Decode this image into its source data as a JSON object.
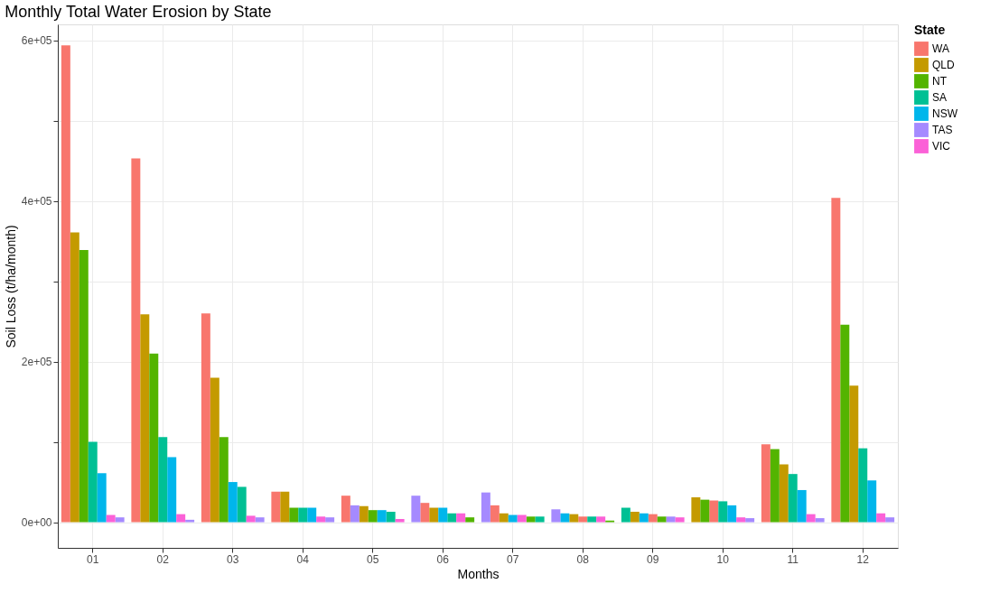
{
  "chart_data": {
    "type": "bar",
    "title": "Monthly Total Water Erosion by State",
    "xlabel": "Months",
    "ylabel": "Soil Loss (t/ha/month)",
    "legend_title": "State",
    "legend": "right",
    "grid": true,
    "categories": [
      "01",
      "02",
      "03",
      "04",
      "05",
      "06",
      "07",
      "08",
      "09",
      "10",
      "11",
      "12"
    ],
    "ylim": [
      -32000,
      620000
    ],
    "yticks": [
      {
        "value": 0,
        "label": "0e+00"
      },
      {
        "value": 100000,
        "label": null
      },
      {
        "value": 200000,
        "label": "2e+05"
      },
      {
        "value": 300000,
        "label": null
      },
      {
        "value": 400000,
        "label": "4e+05"
      },
      {
        "value": 500000,
        "label": null
      },
      {
        "value": 600000,
        "label": "6e+05"
      }
    ],
    "series": [
      {
        "name": "WA",
        "color": "#f8766d",
        "values": [
          594000,
          453000,
          260000,
          38000,
          33000,
          24000,
          21000,
          7000,
          10000,
          27000,
          97000,
          404000
        ]
      },
      {
        "name": "QLD",
        "color": "#c49a00",
        "values": [
          361000,
          259000,
          180000,
          38000,
          20000,
          18000,
          11000,
          10000,
          13000,
          31000,
          72000,
          170000
        ]
      },
      {
        "name": "NT",
        "color": "#53b400",
        "values": [
          339000,
          210000,
          106000,
          18000,
          15000,
          6000,
          7000,
          2000,
          7000,
          28000,
          91000,
          246000
        ]
      },
      {
        "name": "SA",
        "color": "#00c094",
        "values": [
          100000,
          106000,
          44000,
          18000,
          13000,
          11000,
          7000,
          7000,
          18000,
          26000,
          60000,
          92000
        ]
      },
      {
        "name": "NSW",
        "color": "#00b6eb",
        "values": [
          61000,
          81000,
          50000,
          18000,
          15000,
          18000,
          9000,
          11000,
          11000,
          21000,
          40000,
          52000
        ]
      },
      {
        "name": "TAS",
        "color": "#a58aff",
        "values": [
          6000,
          3000,
          6000,
          6000,
          21000,
          33000,
          37000,
          16000,
          7000,
          5000,
          5000,
          6000
        ]
      },
      {
        "name": "VIC",
        "color": "#fb61d7",
        "values": [
          9000,
          10000,
          8000,
          7000,
          4000,
          11000,
          9000,
          7000,
          6000,
          6000,
          10000,
          11000
        ]
      }
    ]
  }
}
